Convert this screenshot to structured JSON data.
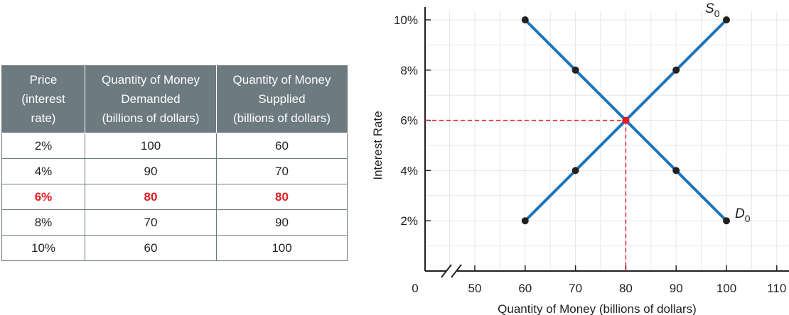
{
  "table": {
    "headers": [
      "Price\n(interest\nrate)",
      "Quantity of Money\nDemanded\n(billions of dollars)",
      "Quantity of Money\nSupplied\n(billions of dollars)"
    ],
    "rows": [
      [
        "2%",
        "100",
        "60"
      ],
      [
        "4%",
        "90",
        "70"
      ],
      [
        "6%",
        "80",
        "80"
      ],
      [
        "8%",
        "70",
        "90"
      ],
      [
        "10%",
        "60",
        "100"
      ]
    ],
    "highlight_row": 2
  },
  "chart_data": {
    "type": "line",
    "xlabel": "Quantity of Money (billions of dollars)",
    "ylabel": "Interest Rate",
    "xlim": [
      40,
      110
    ],
    "ylim": [
      0,
      10
    ],
    "x_ticks": [
      50,
      60,
      70,
      80,
      90,
      100,
      110
    ],
    "x_tick_labels": [
      "50",
      "60",
      "70",
      "80",
      "90",
      "100",
      "110"
    ],
    "x_origin_label": "0",
    "y_ticks": [
      2,
      4,
      6,
      8,
      10
    ],
    "y_tick_labels": [
      "2%",
      "4%",
      "6%",
      "8%",
      "10%"
    ],
    "grid": true,
    "axis_break": true,
    "series": [
      {
        "name": "S0",
        "label_main": "S",
        "label_sub": "0",
        "x": [
          60,
          70,
          80,
          90,
          100
        ],
        "y": [
          2,
          4,
          6,
          8,
          10
        ]
      },
      {
        "name": "D0",
        "label_main": "D",
        "label_sub": "0",
        "x": [
          60,
          70,
          80,
          90,
          100
        ],
        "y": [
          10,
          8,
          6,
          4,
          2
        ]
      }
    ],
    "equilibrium": {
      "x": 80,
      "y": 6,
      "x_label": "80",
      "y_label": "6%"
    },
    "colors": {
      "line": "#1a75bb",
      "point": "#231f20",
      "equilibrium": "#e31b23",
      "grid": "#e6e6e6",
      "axis": "#231f20"
    }
  }
}
